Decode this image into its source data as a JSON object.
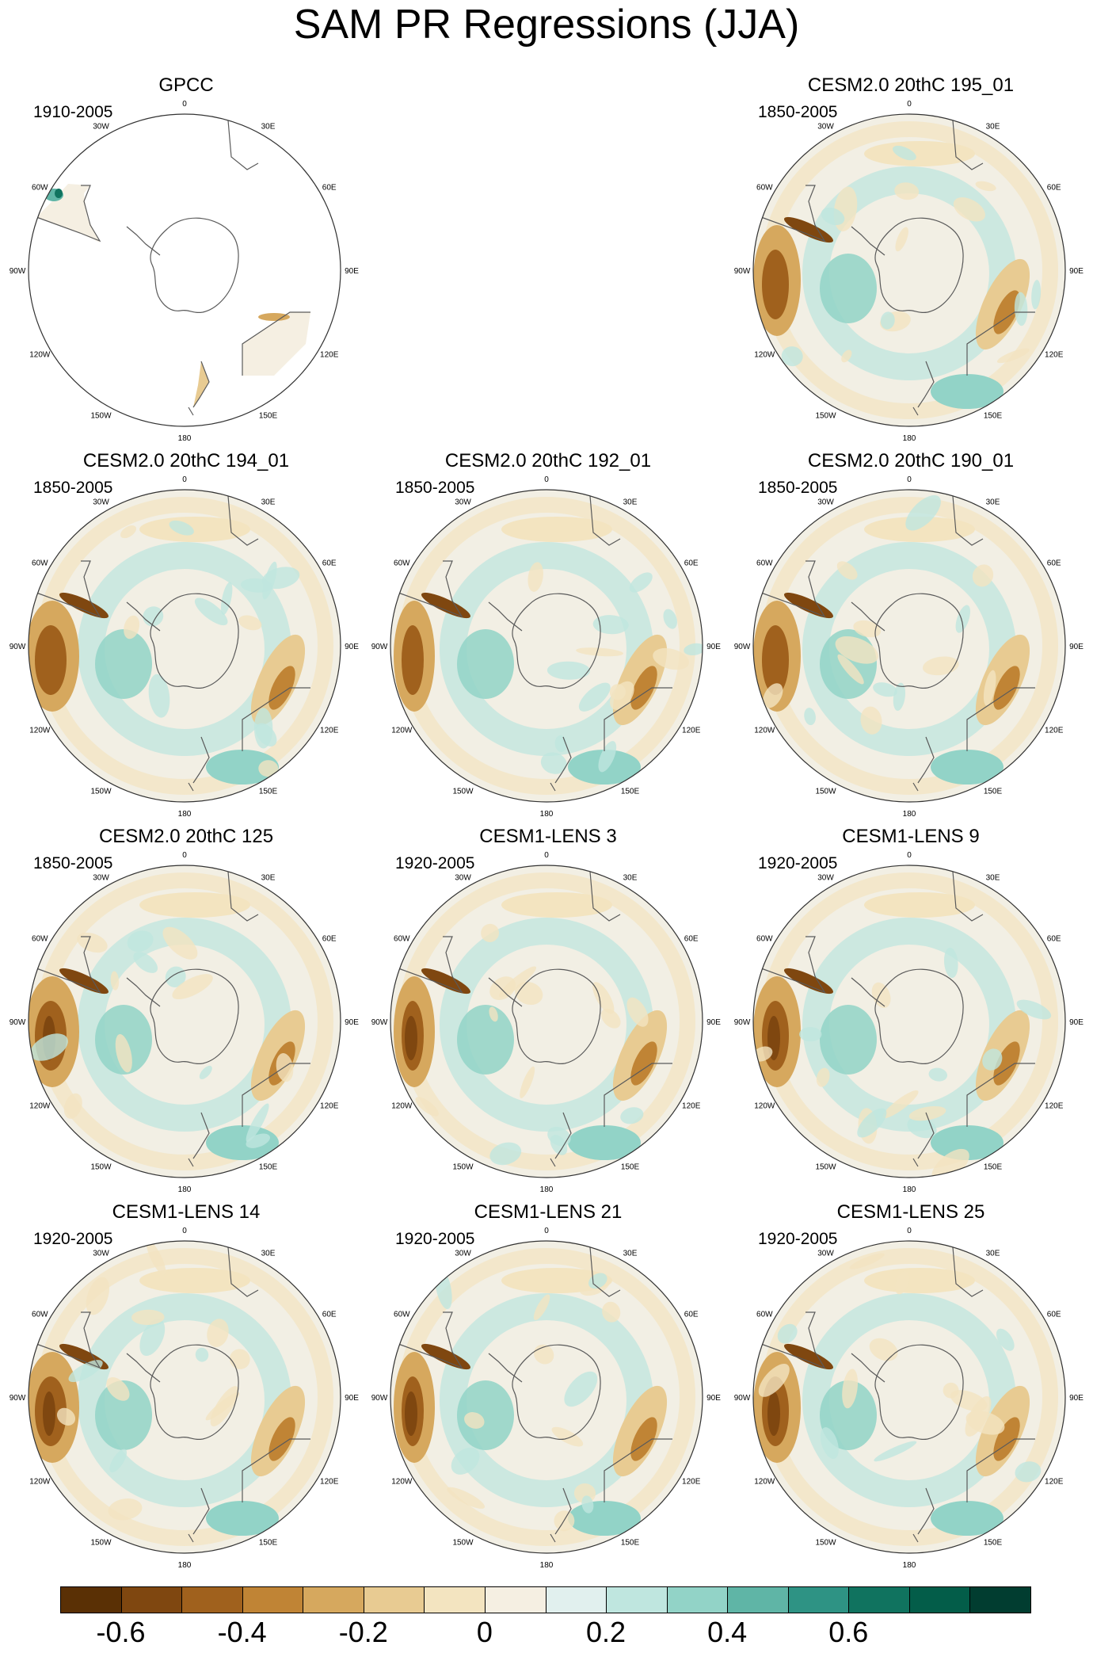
{
  "title": "SAM PR Regressions (JJA)",
  "lon_labels": [
    "0",
    "30E",
    "60E",
    "90E",
    "120E",
    "150E",
    "180",
    "150W",
    "120W",
    "90W",
    "60W",
    "30W"
  ],
  "panels": [
    {
      "id": "gpcc",
      "title": "GPCC",
      "period": "1910-2005",
      "data_coverage": "land only"
    },
    {
      "id": "cesm2-195-01",
      "title": "CESM2.0 20thC 195_01",
      "period": "1850-2005"
    },
    {
      "id": "cesm2-194-01",
      "title": "CESM2.0 20thC 194_01",
      "period": "1850-2005"
    },
    {
      "id": "cesm2-192-01",
      "title": "CESM2.0 20thC 192_01",
      "period": "1850-2005"
    },
    {
      "id": "cesm2-190-01",
      "title": "CESM2.0 20thC 190_01",
      "period": "1850-2005"
    },
    {
      "id": "cesm2-125",
      "title": "CESM2.0 20thC 125",
      "period": "1850-2005"
    },
    {
      "id": "cesm1-lens-3",
      "title": "CESM1-LENS 3",
      "period": "1920-2005"
    },
    {
      "id": "cesm1-lens-9",
      "title": "CESM1-LENS 9",
      "period": "1920-2005"
    },
    {
      "id": "cesm1-lens-14",
      "title": "CESM1-LENS 14",
      "period": "1920-2005"
    },
    {
      "id": "cesm1-lens-21",
      "title": "CESM1-LENS 21",
      "period": "1920-2005"
    },
    {
      "id": "cesm1-lens-25",
      "title": "CESM1-LENS 25",
      "period": "1920-2005"
    }
  ],
  "colorbar": {
    "colors": [
      "#5a3005",
      "#7f4710",
      "#a0611d",
      "#c08435",
      "#d6a85e",
      "#e8cb92",
      "#f3e4c0",
      "#f5efe2",
      "#e1f0ee",
      "#bfe6df",
      "#92d3c7",
      "#5fb5a6",
      "#2e9384",
      "#10735f",
      "#035d49",
      "#013d30"
    ],
    "tick_labels": [
      "-0.6",
      "-0.4",
      "-0.2",
      "0",
      "0.2",
      "0.4",
      "0.6"
    ]
  }
}
